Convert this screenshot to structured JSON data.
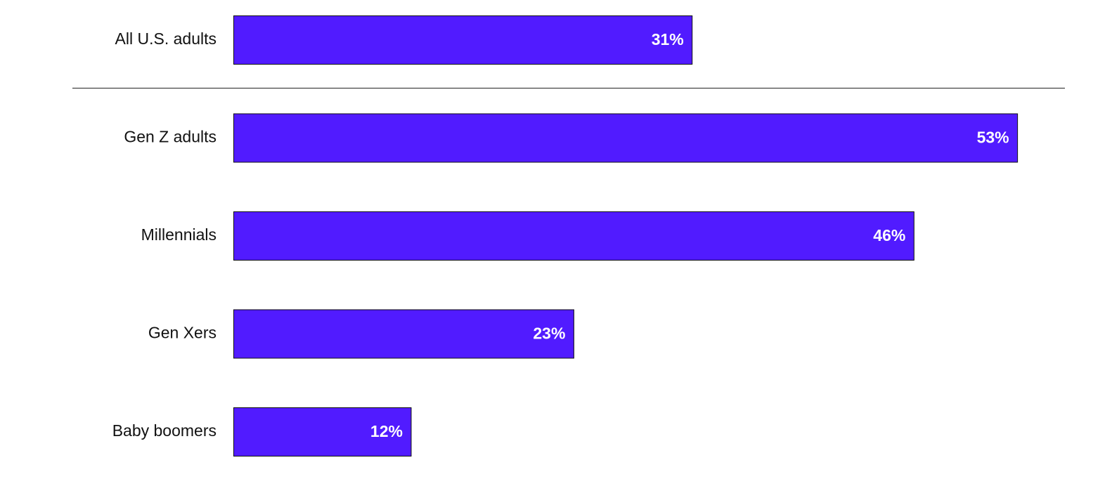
{
  "chart_data": {
    "type": "hbar",
    "categories": [
      "All U.S. adults",
      "Gen Z adults",
      "Millennials",
      "Gen Xers",
      "Baby boomers"
    ],
    "values": [
      31,
      53,
      46,
      23,
      12
    ],
    "value_labels": [
      "31%",
      "53%",
      "46%",
      "23%",
      "12%"
    ],
    "color": "#511bff"
  }
}
